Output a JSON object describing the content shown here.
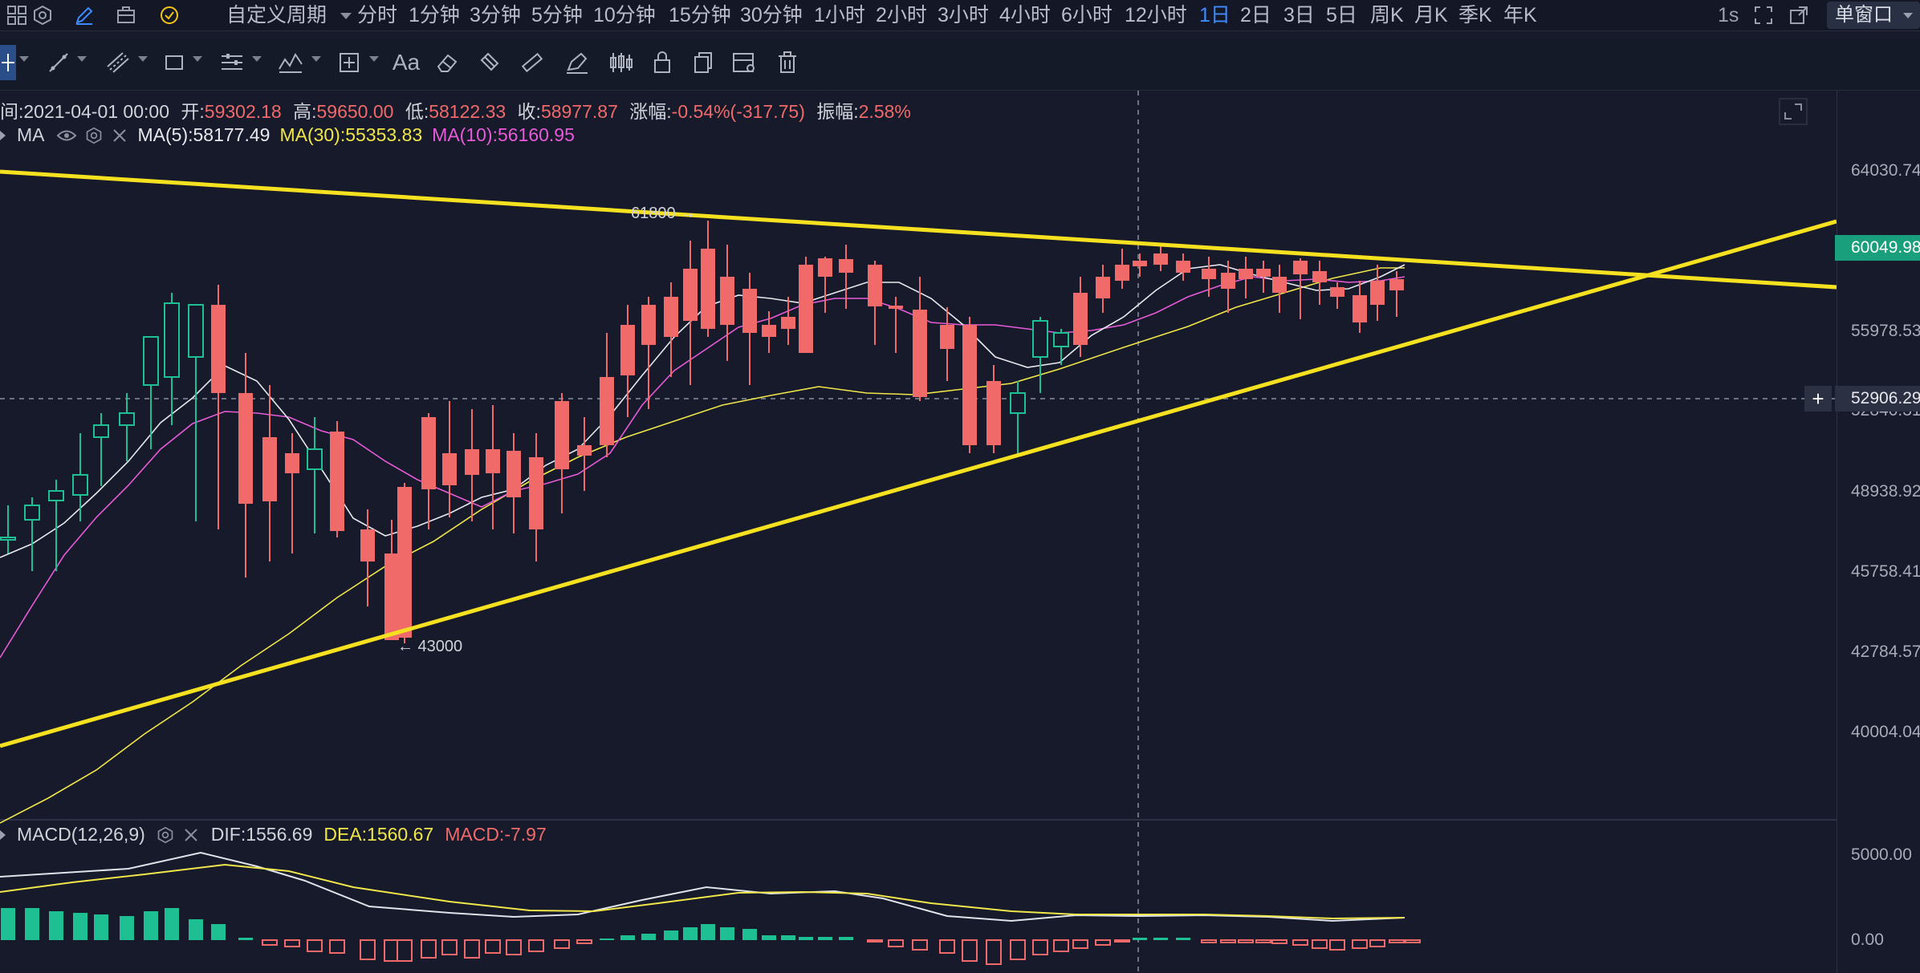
{
  "topbar": {
    "custom_period": "自定义周期",
    "periods": [
      "分时",
      "1分钟",
      "3分钟",
      "5分钟",
      "10分钟",
      "15分钟",
      "30分钟",
      "1小时",
      "2小时",
      "3小时",
      "4小时",
      "6小时",
      "12小时",
      "1日",
      "2日",
      "3日",
      "5日",
      "周K",
      "月K",
      "季K",
      "年K"
    ],
    "active_period": "1日",
    "refresh": "1s",
    "window_mode": "单窗口"
  },
  "toolbar": {
    "text_tool": "Aa"
  },
  "ohlc": {
    "time_label": "间:",
    "time": "2021-04-01 00:00",
    "open_label": "开:",
    "open": "59302.18",
    "high_label": "高:",
    "high": "59650.00",
    "low_label": "低:",
    "low": "58122.33",
    "close_label": "收:",
    "close": "58977.87",
    "change_label": "涨幅:",
    "change": "-0.54%(-317.75)",
    "amp_label": "振幅:",
    "amp": "2.58%"
  },
  "ma": {
    "name": "MA",
    "ma5": "MA(5):58177.49",
    "ma30": "MA(30):55353.83",
    "ma10": "MA(10):56160.95"
  },
  "macd": {
    "name": "MACD(12,26,9)",
    "dif": "DIF:1556.69",
    "dea": "DEA:1560.67",
    "macd": "MACD:-7.97"
  },
  "price_axis": {
    "ticks": [
      "64030.74",
      "55978.53",
      "52840.31",
      "48938.92",
      "45758.41",
      "42784.57",
      "40004.04"
    ],
    "last_price": "60049.98",
    "cursor_price": "52906.29",
    "macd_ticks": [
      "5000.00",
      "0.00"
    ]
  },
  "annotations": {
    "high_mark": "61800 →",
    "low_mark": "← 43000"
  },
  "colors": {
    "background": "#161a2a",
    "up": "#1fbf94",
    "down": "#f06a6a",
    "trendline": "#f5e11f",
    "ma5": "#e8e8ee",
    "ma10": "#e85ad8",
    "ma30": "#f1e64a",
    "accent": "#3d8bff"
  }
}
